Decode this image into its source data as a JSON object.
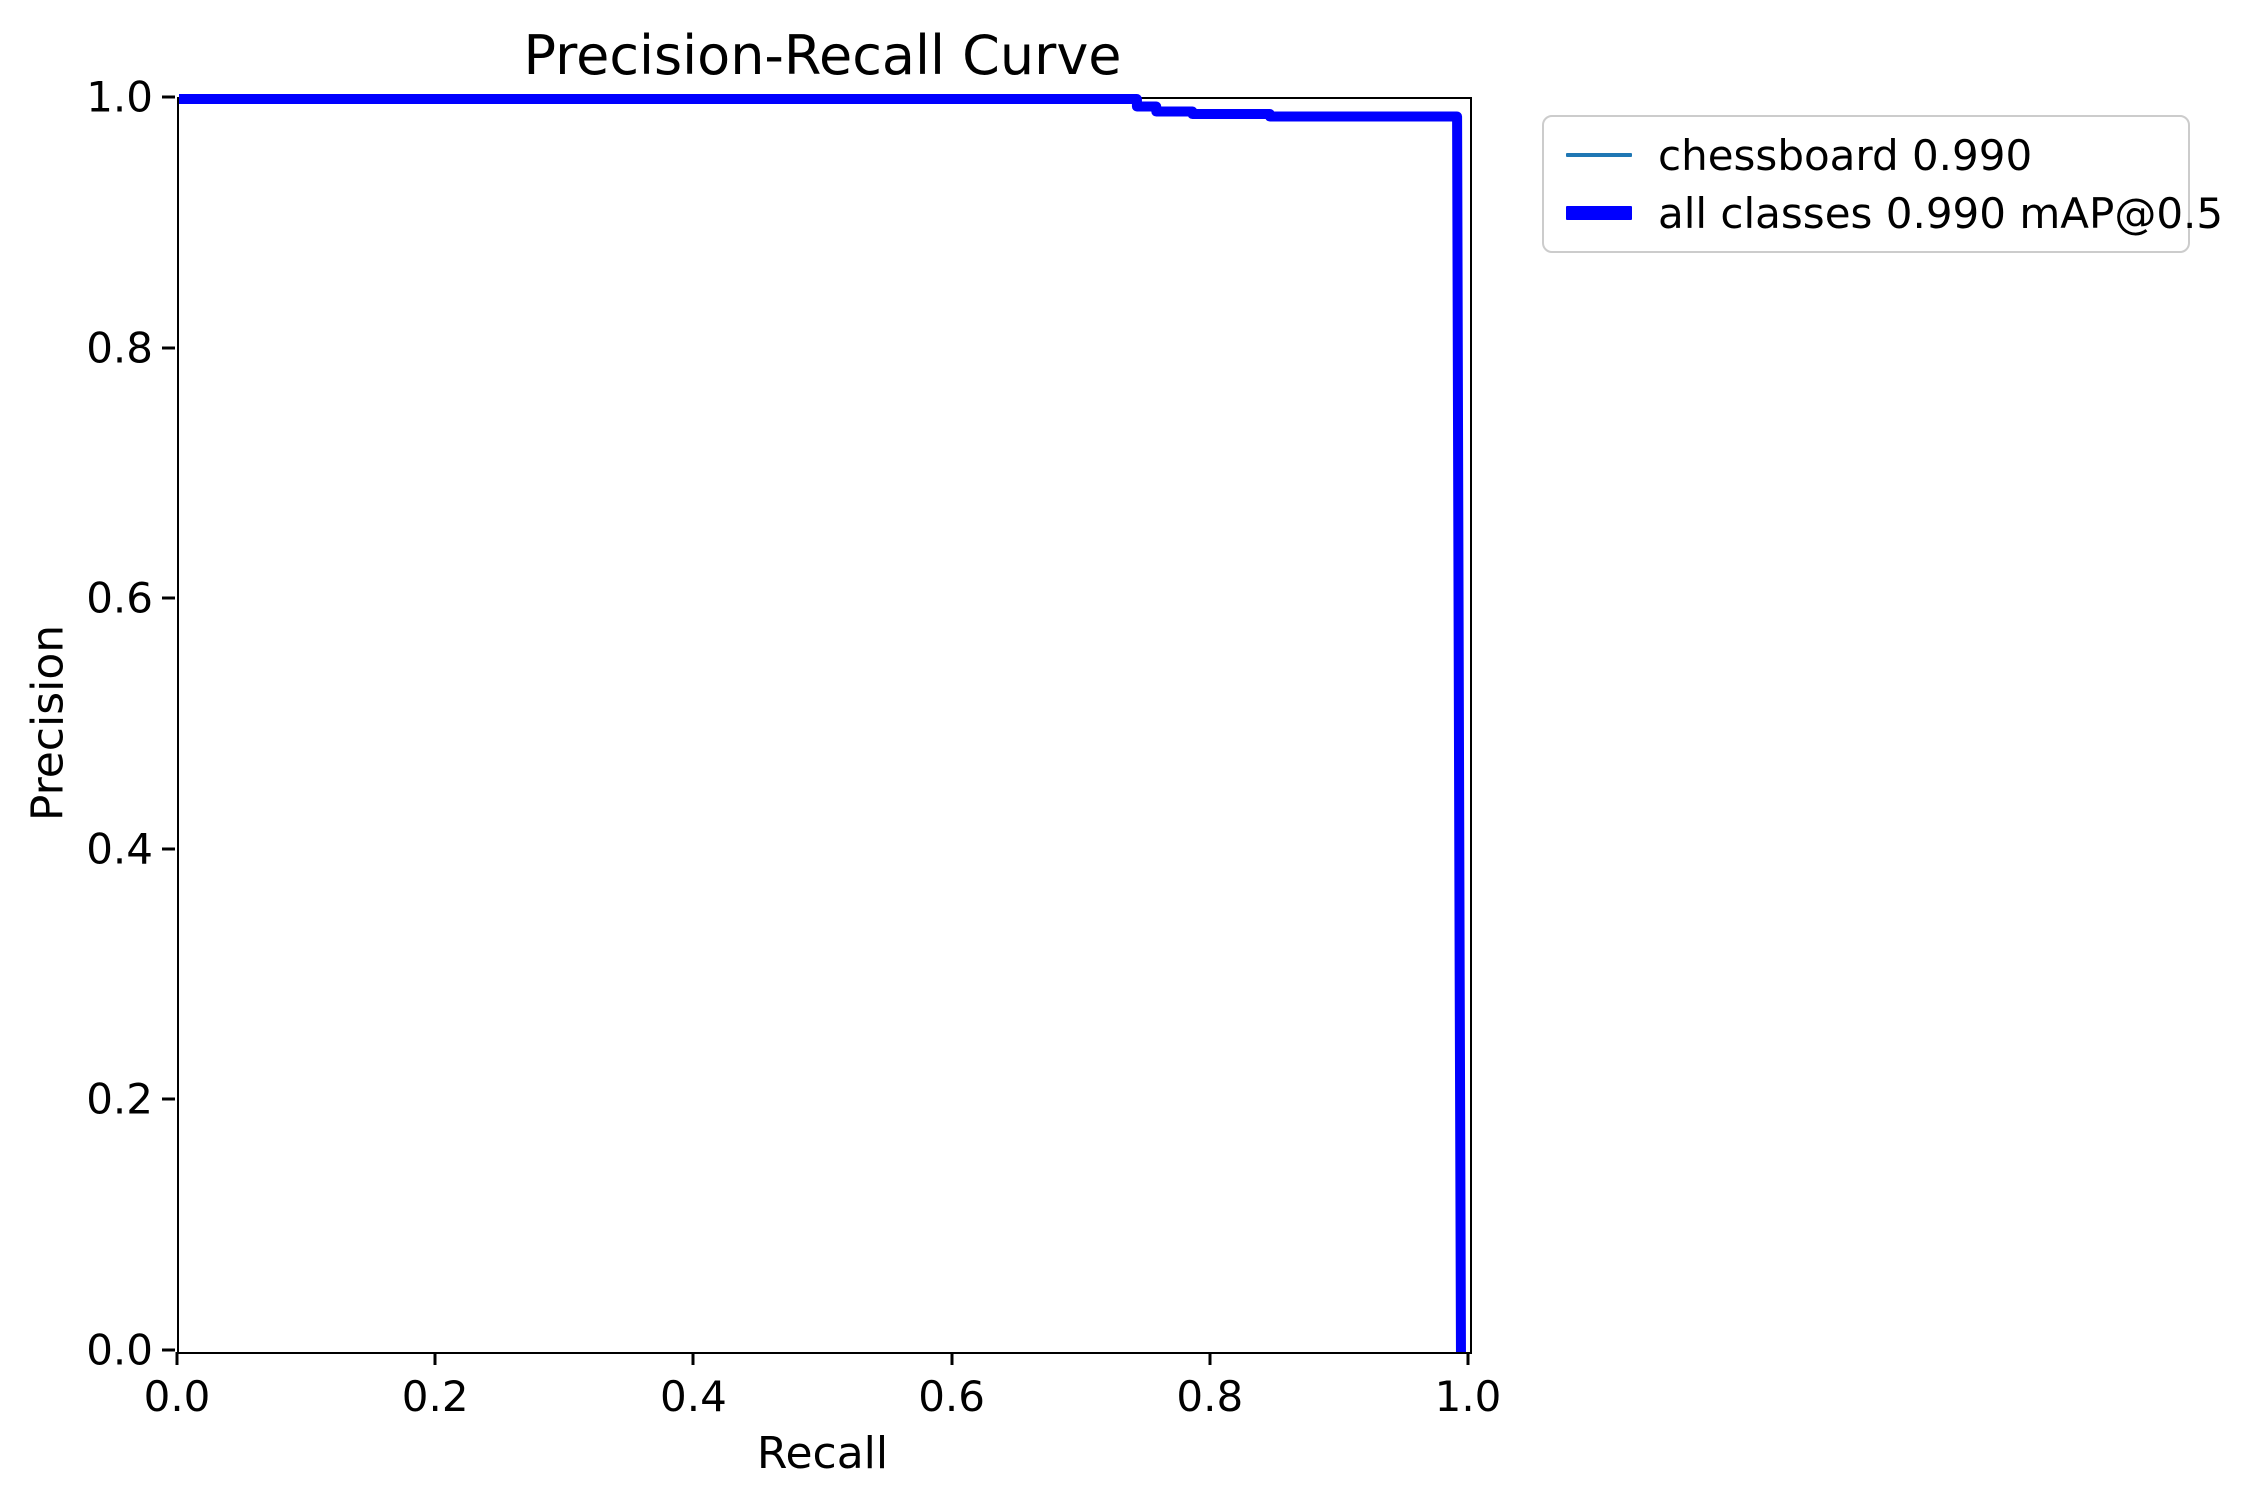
{
  "figure": {
    "title": "Precision-Recall Curve",
    "xlabel": "Recall",
    "ylabel": "Precision"
  },
  "legend": {
    "position": "outside upper right",
    "items": [
      {
        "label": "chessboard 0.990",
        "color": "#1f77b4",
        "thickness": "thin"
      },
      {
        "label": "all classes 0.990 mAP@0.5",
        "color": "#0000ff",
        "thickness": "thick"
      }
    ]
  },
  "chart_data": {
    "type": "line",
    "title": "Precision-Recall Curve",
    "xlabel": "Recall",
    "ylabel": "Precision",
    "xlim": [
      0.0,
      1.0
    ],
    "ylim": [
      0.0,
      1.0
    ],
    "x_ticks": [
      "0.0",
      "0.2",
      "0.4",
      "0.6",
      "0.8",
      "1.0"
    ],
    "y_ticks": [
      "0.0",
      "0.2",
      "0.4",
      "0.6",
      "0.8",
      "1.0"
    ],
    "grid": false,
    "legend_position": "outside upper right",
    "series": [
      {
        "name": "chessboard 0.990",
        "color": "#1f77b4",
        "linewidth": "thin",
        "x": [
          0.0,
          0.742,
          0.742,
          0.757,
          0.757,
          0.785,
          0.785,
          0.845,
          0.845,
          0.99,
          0.992,
          0.993
        ],
        "y": [
          1.0,
          1.0,
          0.994,
          0.994,
          0.99,
          0.99,
          0.988,
          0.988,
          0.986,
          0.986,
          0.3,
          0.0
        ]
      },
      {
        "name": "all classes 0.990 mAP@0.5",
        "color": "#0000ff",
        "linewidth": "thick",
        "x": [
          0.0,
          0.742,
          0.742,
          0.757,
          0.757,
          0.785,
          0.785,
          0.845,
          0.845,
          0.99,
          0.992,
          0.993
        ],
        "y": [
          1.0,
          1.0,
          0.994,
          0.994,
          0.99,
          0.99,
          0.988,
          0.988,
          0.986,
          0.986,
          0.3,
          0.0
        ]
      }
    ]
  }
}
